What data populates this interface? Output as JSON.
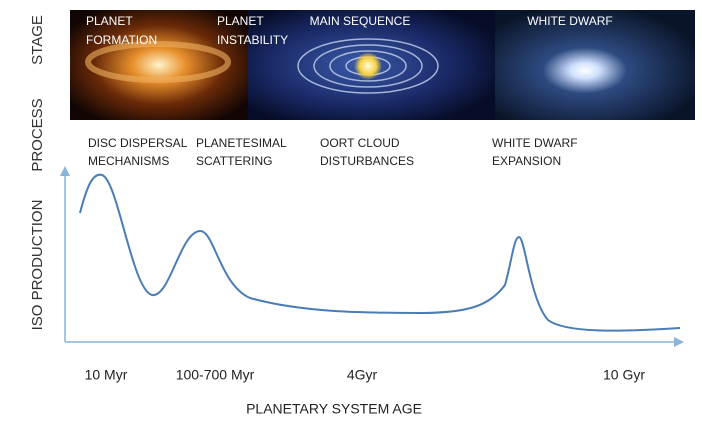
{
  "row_labels": {
    "stage": "STAGE",
    "process": "PROCESS",
    "production": "ISO PRODUCTION"
  },
  "stages": [
    [
      "PLANET",
      "FORMATION"
    ],
    [
      "PLANET",
      "INSTABILITY"
    ],
    [
      "MAIN SEQUENCE"
    ],
    [
      "WHITE DWARF"
    ]
  ],
  "processes": [
    [
      "DISC DISPERSAL",
      "MECHANISMS"
    ],
    [
      "PLANETESIMAL",
      "SCATTERING"
    ],
    [
      "OORT CLOUD",
      "DISTURBANCES"
    ],
    [
      "WHITE DWARF",
      "EXPANSION"
    ]
  ],
  "age_labels": [
    "10 Myr",
    "100-700 Myr",
    "4Gyr",
    "10 Gyr"
  ],
  "axis_title": "PLANETARY SYSTEM AGE"
}
